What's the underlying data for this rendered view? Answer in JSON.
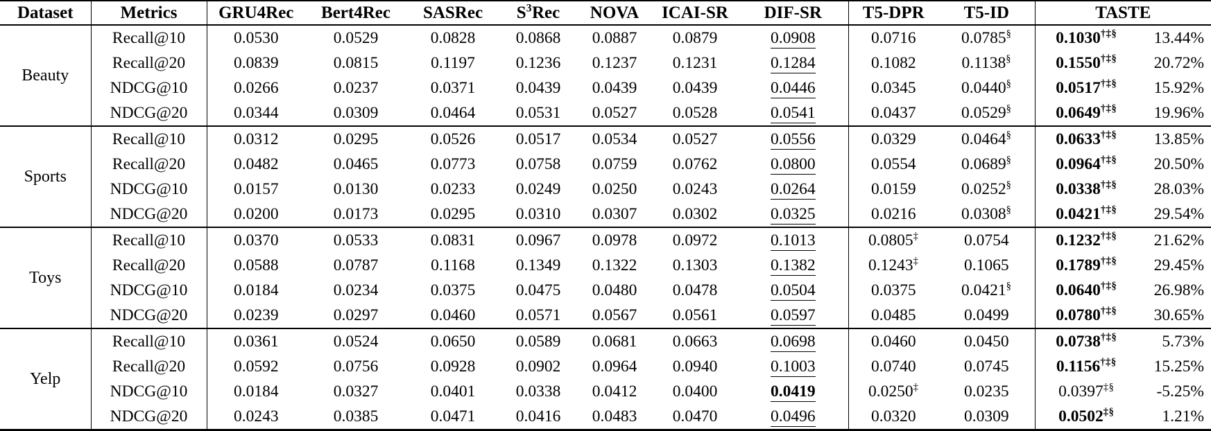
{
  "colors": {
    "text": "#000000",
    "background": "#ffffff",
    "rule": "#000000"
  },
  "table": {
    "headers": {
      "dataset": "Dataset",
      "metrics": "Metrics",
      "gru4rec": "GRU4Rec",
      "bert4rec": "Bert4Rec",
      "sasrec": "SASRec",
      "s3rec": {
        "pre": "S",
        "sup": "3",
        "post": "Rec"
      },
      "nova": "NOVA",
      "icai_sr": "ICAI-SR",
      "dif_sr": "DIF-SR",
      "t5_dpr": "T5-DPR",
      "t5_id": "T5-ID",
      "taste": "TASTE"
    },
    "groups": [
      {
        "dataset": "Beauty",
        "rows": [
          {
            "metric": "Recall@10",
            "cells": [
              {
                "v": "0.0530"
              },
              {
                "v": "0.0529"
              },
              {
                "v": "0.0828"
              },
              {
                "v": "0.0868"
              },
              {
                "v": "0.0887"
              },
              {
                "v": "0.0879"
              },
              {
                "v": "0.0908",
                "u": true
              },
              {
                "v": "0.0716"
              },
              {
                "v": "0.0785",
                "sup": "§"
              }
            ],
            "taste": {
              "v": "0.1030",
              "b": true,
              "sup": "†‡§"
            },
            "improve": "13.44%"
          },
          {
            "metric": "Recall@20",
            "cells": [
              {
                "v": "0.0839"
              },
              {
                "v": "0.0815"
              },
              {
                "v": "0.1197"
              },
              {
                "v": "0.1236"
              },
              {
                "v": "0.1237"
              },
              {
                "v": "0.1231"
              },
              {
                "v": "0.1284",
                "u": true
              },
              {
                "v": "0.1082"
              },
              {
                "v": "0.1138",
                "sup": "§"
              }
            ],
            "taste": {
              "v": "0.1550",
              "b": true,
              "sup": "†‡§"
            },
            "improve": "20.72%"
          },
          {
            "metric": "NDCG@10",
            "cells": [
              {
                "v": "0.0266"
              },
              {
                "v": "0.0237"
              },
              {
                "v": "0.0371"
              },
              {
                "v": "0.0439"
              },
              {
                "v": "0.0439"
              },
              {
                "v": "0.0439"
              },
              {
                "v": "0.0446",
                "u": true
              },
              {
                "v": "0.0345"
              },
              {
                "v": "0.0440",
                "sup": "§"
              }
            ],
            "taste": {
              "v": "0.0517",
              "b": true,
              "sup": "†‡§"
            },
            "improve": "15.92%"
          },
          {
            "metric": "NDCG@20",
            "cells": [
              {
                "v": "0.0344"
              },
              {
                "v": "0.0309"
              },
              {
                "v": "0.0464"
              },
              {
                "v": "0.0531"
              },
              {
                "v": "0.0527"
              },
              {
                "v": "0.0528"
              },
              {
                "v": "0.0541",
                "u": true
              },
              {
                "v": "0.0437"
              },
              {
                "v": "0.0529",
                "sup": "§"
              }
            ],
            "taste": {
              "v": "0.0649",
              "b": true,
              "sup": "†‡§"
            },
            "improve": "19.96%"
          }
        ]
      },
      {
        "dataset": "Sports",
        "rows": [
          {
            "metric": "Recall@10",
            "cells": [
              {
                "v": "0.0312"
              },
              {
                "v": "0.0295"
              },
              {
                "v": "0.0526"
              },
              {
                "v": "0.0517"
              },
              {
                "v": "0.0534"
              },
              {
                "v": "0.0527"
              },
              {
                "v": "0.0556",
                "u": true
              },
              {
                "v": "0.0329"
              },
              {
                "v": "0.0464",
                "sup": "§"
              }
            ],
            "taste": {
              "v": "0.0633",
              "b": true,
              "sup": "†‡§"
            },
            "improve": "13.85%"
          },
          {
            "metric": "Recall@20",
            "cells": [
              {
                "v": "0.0482"
              },
              {
                "v": "0.0465"
              },
              {
                "v": "0.0773"
              },
              {
                "v": "0.0758"
              },
              {
                "v": "0.0759"
              },
              {
                "v": "0.0762"
              },
              {
                "v": "0.0800",
                "u": true
              },
              {
                "v": "0.0554"
              },
              {
                "v": "0.0689",
                "sup": "§"
              }
            ],
            "taste": {
              "v": "0.0964",
              "b": true,
              "sup": "†‡§"
            },
            "improve": "20.50%"
          },
          {
            "metric": "NDCG@10",
            "cells": [
              {
                "v": "0.0157"
              },
              {
                "v": "0.0130"
              },
              {
                "v": "0.0233"
              },
              {
                "v": "0.0249"
              },
              {
                "v": "0.0250"
              },
              {
                "v": "0.0243"
              },
              {
                "v": "0.0264",
                "u": true
              },
              {
                "v": "0.0159"
              },
              {
                "v": "0.0252",
                "sup": "§"
              }
            ],
            "taste": {
              "v": "0.0338",
              "b": true,
              "sup": "†‡§"
            },
            "improve": "28.03%"
          },
          {
            "metric": "NDCG@20",
            "cells": [
              {
                "v": "0.0200"
              },
              {
                "v": "0.0173"
              },
              {
                "v": "0.0295"
              },
              {
                "v": "0.0310"
              },
              {
                "v": "0.0307"
              },
              {
                "v": "0.0302"
              },
              {
                "v": "0.0325",
                "u": true
              },
              {
                "v": "0.0216"
              },
              {
                "v": "0.0308",
                "sup": "§"
              }
            ],
            "taste": {
              "v": "0.0421",
              "b": true,
              "sup": "†‡§"
            },
            "improve": "29.54%"
          }
        ]
      },
      {
        "dataset": "Toys",
        "rows": [
          {
            "metric": "Recall@10",
            "cells": [
              {
                "v": "0.0370"
              },
              {
                "v": "0.0533"
              },
              {
                "v": "0.0831"
              },
              {
                "v": "0.0967"
              },
              {
                "v": "0.0978"
              },
              {
                "v": "0.0972"
              },
              {
                "v": "0.1013",
                "u": true
              },
              {
                "v": "0.0805",
                "sup": "‡"
              },
              {
                "v": "0.0754"
              }
            ],
            "taste": {
              "v": "0.1232",
              "b": true,
              "sup": "†‡§"
            },
            "improve": "21.62%"
          },
          {
            "metric": "Recall@20",
            "cells": [
              {
                "v": "0.0588"
              },
              {
                "v": "0.0787"
              },
              {
                "v": "0.1168"
              },
              {
                "v": "0.1349"
              },
              {
                "v": "0.1322"
              },
              {
                "v": "0.1303"
              },
              {
                "v": "0.1382",
                "u": true
              },
              {
                "v": "0.1243",
                "sup": "‡"
              },
              {
                "v": "0.1065"
              }
            ],
            "taste": {
              "v": "0.1789",
              "b": true,
              "sup": "†‡§"
            },
            "improve": "29.45%"
          },
          {
            "metric": "NDCG@10",
            "cells": [
              {
                "v": "0.0184"
              },
              {
                "v": "0.0234"
              },
              {
                "v": "0.0375"
              },
              {
                "v": "0.0475"
              },
              {
                "v": "0.0480"
              },
              {
                "v": "0.0478"
              },
              {
                "v": "0.0504",
                "u": true
              },
              {
                "v": "0.0375"
              },
              {
                "v": "0.0421",
                "sup": "§"
              }
            ],
            "taste": {
              "v": "0.0640",
              "b": true,
              "sup": "†‡§"
            },
            "improve": "26.98%"
          },
          {
            "metric": "NDCG@20",
            "cells": [
              {
                "v": "0.0239"
              },
              {
                "v": "0.0297"
              },
              {
                "v": "0.0460"
              },
              {
                "v": "0.0571"
              },
              {
                "v": "0.0567"
              },
              {
                "v": "0.0561"
              },
              {
                "v": "0.0597",
                "u": true
              },
              {
                "v": "0.0485"
              },
              {
                "v": "0.0499"
              }
            ],
            "taste": {
              "v": "0.0780",
              "b": true,
              "sup": "†‡§"
            },
            "improve": "30.65%"
          }
        ]
      },
      {
        "dataset": "Yelp",
        "rows": [
          {
            "metric": "Recall@10",
            "cells": [
              {
                "v": "0.0361"
              },
              {
                "v": "0.0524"
              },
              {
                "v": "0.0650"
              },
              {
                "v": "0.0589"
              },
              {
                "v": "0.0681"
              },
              {
                "v": "0.0663"
              },
              {
                "v": "0.0698",
                "u": true
              },
              {
                "v": "0.0460"
              },
              {
                "v": "0.0450"
              }
            ],
            "taste": {
              "v": "0.0738",
              "b": true,
              "sup": "†‡§"
            },
            "improve": "5.73%"
          },
          {
            "metric": "Recall@20",
            "cells": [
              {
                "v": "0.0592"
              },
              {
                "v": "0.0756"
              },
              {
                "v": "0.0928"
              },
              {
                "v": "0.0902"
              },
              {
                "v": "0.0964"
              },
              {
                "v": "0.0940"
              },
              {
                "v": "0.1003",
                "u": true
              },
              {
                "v": "0.0740"
              },
              {
                "v": "0.0745"
              }
            ],
            "taste": {
              "v": "0.1156",
              "b": true,
              "sup": "†‡§"
            },
            "improve": "15.25%"
          },
          {
            "metric": "NDCG@10",
            "cells": [
              {
                "v": "0.0184"
              },
              {
                "v": "0.0327"
              },
              {
                "v": "0.0401"
              },
              {
                "v": "0.0338"
              },
              {
                "v": "0.0412"
              },
              {
                "v": "0.0400"
              },
              {
                "v": "0.0419",
                "u": true,
                "b": true
              },
              {
                "v": "0.0250",
                "sup": "‡"
              },
              {
                "v": "0.0235"
              }
            ],
            "taste": {
              "v": "0.0397",
              "sup": "‡§"
            },
            "improve": "-5.25%"
          },
          {
            "metric": "NDCG@20",
            "cells": [
              {
                "v": "0.0243"
              },
              {
                "v": "0.0385"
              },
              {
                "v": "0.0471"
              },
              {
                "v": "0.0416"
              },
              {
                "v": "0.0483"
              },
              {
                "v": "0.0470"
              },
              {
                "v": "0.0496",
                "u": true
              },
              {
                "v": "0.0320"
              },
              {
                "v": "0.0309"
              }
            ],
            "taste": {
              "v": "0.0502",
              "b": true,
              "sup": "‡§"
            },
            "improve": "1.21%"
          }
        ]
      }
    ]
  }
}
